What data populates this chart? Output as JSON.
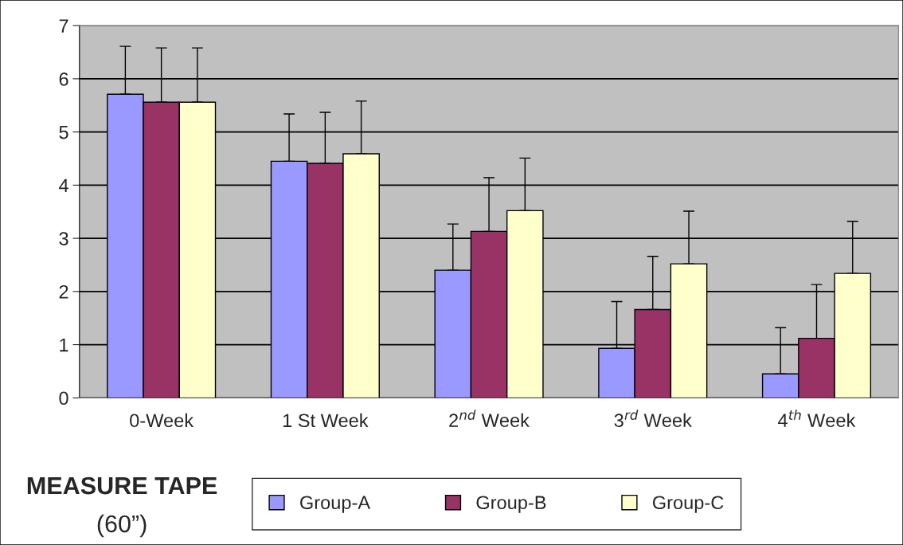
{
  "chart_data": {
    "type": "bar",
    "title": "MEASURE TAPE",
    "subtitle": "(60”)",
    "categories": [
      "0-Week",
      "1 St Week",
      "2$^{nd}$ Week",
      "3$^{rd}$ Week",
      "4$^{th}$ Week"
    ],
    "series": [
      {
        "name": "Group-A",
        "color": "#9999ff",
        "values": [
          5.71,
          4.45,
          2.4,
          0.93,
          0.45
        ],
        "errors": [
          [
            5.71,
            6.61
          ],
          [
            4.45,
            5.34
          ],
          [
            2.4,
            3.27
          ],
          [
            0.93,
            1.81
          ],
          [
            0.45,
            1.32
          ]
        ]
      },
      {
        "name": "Group-B",
        "color": "#993366",
        "values": [
          5.56,
          4.41,
          3.13,
          1.66,
          1.12
        ],
        "errors": [
          [
            5.56,
            6.58
          ],
          [
            4.41,
            5.37
          ],
          [
            3.13,
            4.14
          ],
          [
            1.66,
            2.66
          ],
          [
            1.12,
            2.13
          ]
        ]
      },
      {
        "name": "Group-C",
        "color": "#ffffcc",
        "values": [
          5.56,
          4.59,
          3.52,
          2.52,
          2.34
        ],
        "errors": [
          [
            5.56,
            6.58
          ],
          [
            4.59,
            5.58
          ],
          [
            3.52,
            4.51
          ],
          [
            2.52,
            3.51
          ],
          [
            2.34,
            3.32
          ]
        ]
      }
    ],
    "ylim": [
      0,
      7
    ],
    "yticks": [
      0,
      1,
      2,
      3,
      4,
      5,
      6,
      7
    ],
    "grid": "y",
    "legend": "bottom"
  }
}
